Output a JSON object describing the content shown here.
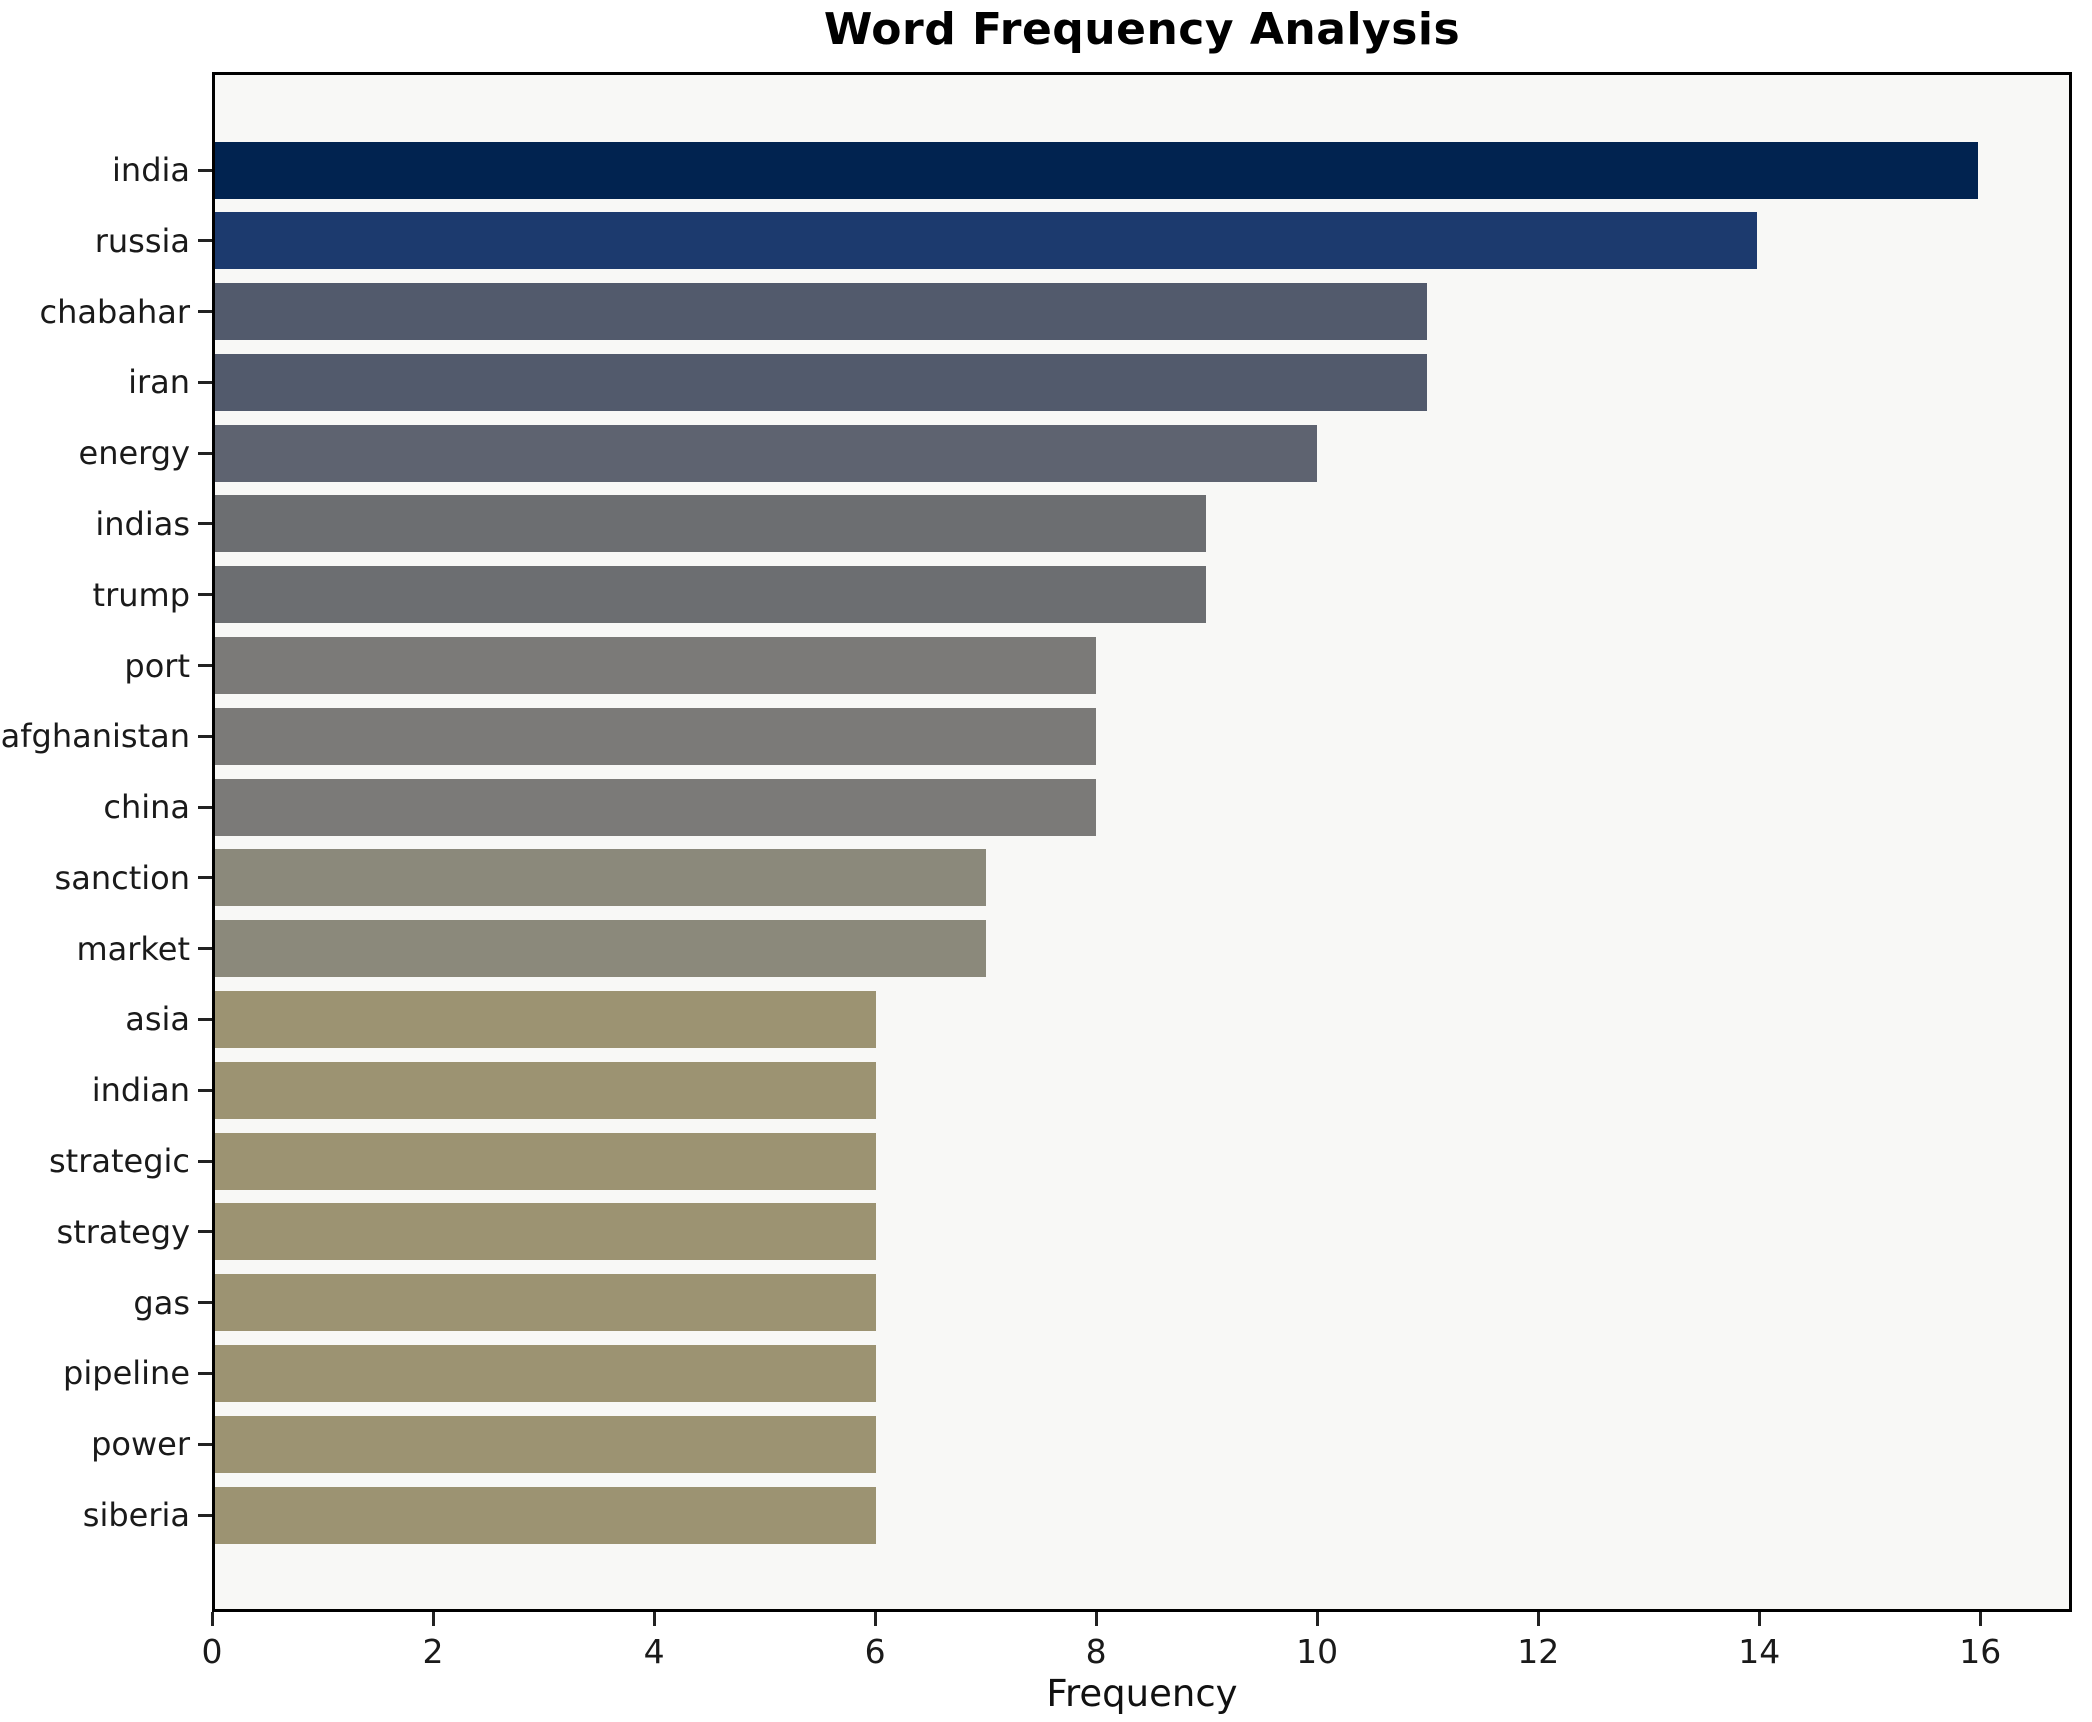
{
  "chart_data": {
    "type": "bar",
    "orientation": "horizontal",
    "title": "Word Frequency Analysis",
    "xlabel": "Frequency",
    "ylabel": "",
    "categories": [
      "india",
      "russia",
      "chabahar",
      "iran",
      "energy",
      "indias",
      "trump",
      "port",
      "afghanistan",
      "china",
      "sanction",
      "market",
      "asia",
      "indian",
      "strategic",
      "strategy",
      "gas",
      "pipeline",
      "power",
      "siberia"
    ],
    "values": [
      16,
      14,
      11,
      11,
      10,
      9,
      9,
      8,
      8,
      8,
      7,
      7,
      6,
      6,
      6,
      6,
      6,
      6,
      6,
      6
    ],
    "bar_colors": [
      "#012350",
      "#1c3a6e",
      "#525a6c",
      "#525a6c",
      "#5e6370",
      "#6c6e71",
      "#6c6e71",
      "#7b7a78",
      "#7b7a78",
      "#7b7a78",
      "#8b897b",
      "#8b897b",
      "#9c9372",
      "#9c9372",
      "#9c9372",
      "#9c9372",
      "#9c9372",
      "#9c9372",
      "#9c9372",
      "#9c9372"
    ],
    "x_ticks": [
      0,
      2,
      4,
      6,
      8,
      10,
      12,
      14,
      16
    ],
    "xlim": [
      0,
      16.83
    ],
    "grid": false,
    "legend": null,
    "plot_background": "#f8f8f6",
    "figure_background": "#ffffff",
    "spine_color": "#000000"
  }
}
